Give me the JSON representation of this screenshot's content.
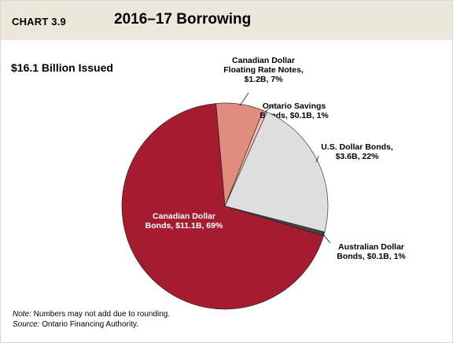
{
  "header": {
    "chart_number": "CHART 3.9",
    "title": "2016–17 Borrowing"
  },
  "subtitle": "$16.1 Billion Issued",
  "notes": {
    "note_label": "Note:",
    "note_text": " Numbers may not add due to rounding.",
    "source_label": "Source:",
    "source_text": " Ontario Financing Authority."
  },
  "colors": {
    "header_bg": "#ece7db",
    "canadian_bonds": "#a51c30",
    "floating_rate": "#e08c7e",
    "ontario_savings": "#f0c0b4",
    "us_bonds": "#dedede",
    "australian_bonds": "#444444"
  },
  "chart_data": {
    "type": "pie",
    "title": "2016–17 Borrowing",
    "subtitle": "$16.1 Billion Issued",
    "total": 16.1,
    "slices": [
      {
        "name": "Canadian Dollar Floating Rate Notes",
        "value": 1.2,
        "share": 7,
        "label_lines": [
          "Canadian Dollar",
          "Floating Rate Notes,",
          "$1.2B, 7%"
        ],
        "color": "#e08c7e"
      },
      {
        "name": "Ontario Savings Bonds",
        "value": 0.1,
        "share": 1,
        "label_lines": [
          "Ontario Savings",
          "Bonds,  $0.1B, 1%"
        ],
        "color": "#f0c0b4"
      },
      {
        "name": "U.S. Dollar Bonds",
        "value": 3.6,
        "share": 22,
        "label_lines": [
          "U.S. Dollar Bonds,",
          "$3.6B, 22%"
        ],
        "color": "#dedede"
      },
      {
        "name": "Australian Dollar Bonds",
        "value": 0.1,
        "share": 1,
        "label_lines": [
          "Australian Dollar",
          "Bonds,  $0.1B, 1%"
        ],
        "color": "#444444"
      },
      {
        "name": "Canadian Dollar Bonds",
        "value": 11.1,
        "share": 69,
        "label_lines": [
          "Canadian Dollar",
          "Bonds,  $11.1B, 69%"
        ],
        "color": "#a51c30"
      }
    ]
  }
}
